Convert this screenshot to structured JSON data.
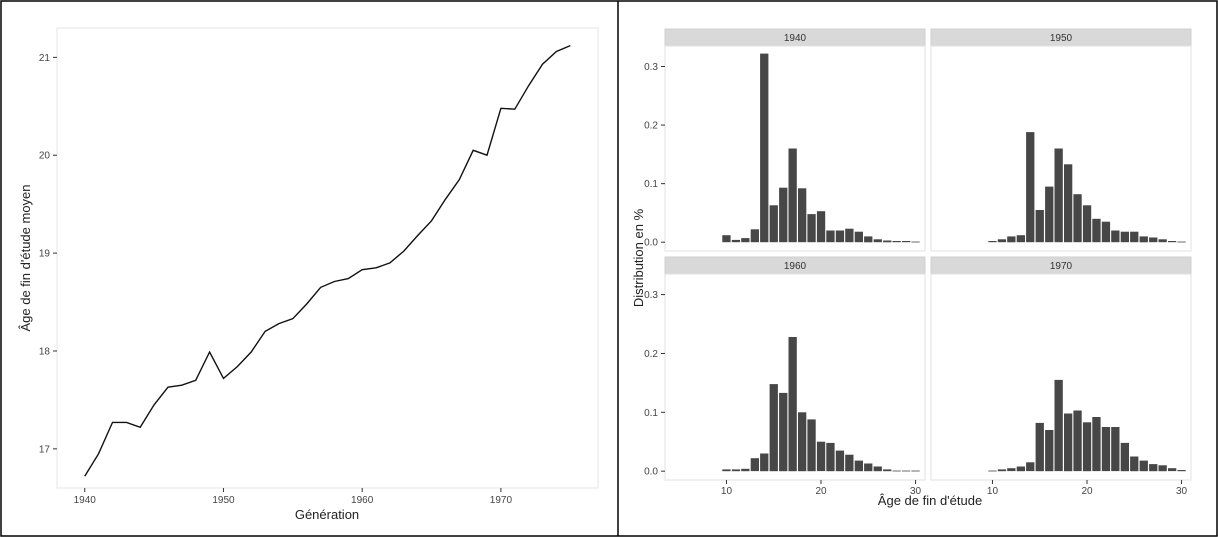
{
  "chart_data": [
    {
      "type": "line",
      "xlabel": "Génération",
      "ylabel": "Âge de fin d'étude moyen",
      "xlim": [
        1938,
        1977
      ],
      "ylim": [
        16.6,
        21.3
      ],
      "x_ticks": [
        "1940",
        "1950",
        "1960",
        "1970"
      ],
      "y_ticks": [
        "17",
        "18",
        "19",
        "20",
        "21"
      ],
      "grid": false,
      "series": [
        {
          "x": [
            1940,
            1941,
            1942,
            1943,
            1944,
            1945,
            1946,
            1947,
            1948,
            1949,
            1950,
            1951,
            1952,
            1953,
            1954,
            1955,
            1956,
            1957,
            1958,
            1959,
            1960,
            1961,
            1962,
            1963,
            1964,
            1965,
            1966,
            1967,
            1968,
            1969,
            1970,
            1971,
            1972,
            1973,
            1974,
            1975
          ],
          "y": [
            16.72,
            16.95,
            17.27,
            17.27,
            17.22,
            17.45,
            17.63,
            17.65,
            17.7,
            17.99,
            17.72,
            17.84,
            17.99,
            18.2,
            18.28,
            18.33,
            18.48,
            18.65,
            18.71,
            18.74,
            18.83,
            18.85,
            18.9,
            19.02,
            19.18,
            19.33,
            19.55,
            19.75,
            20.05,
            20.0,
            20.48,
            20.47,
            20.71,
            20.93,
            21.06,
            21.12
          ]
        }
      ]
    },
    {
      "type": "bar",
      "facet_strips": [
        "1940",
        "1950",
        "1960",
        "1970"
      ],
      "xlabel": "Âge de fin d'étude",
      "ylabel": "Distribution en %",
      "xlim": [
        3.5,
        31
      ],
      "ylim": [
        -0.015,
        0.335
      ],
      "x_ticks": [
        "10",
        "20",
        "30"
      ],
      "y_ticks": [
        "0.0",
        "0.1",
        "0.2",
        "0.3"
      ],
      "categories": [
        10,
        11,
        12,
        13,
        14,
        15,
        16,
        17,
        18,
        19,
        20,
        21,
        22,
        23,
        24,
        25,
        26,
        27,
        28,
        29,
        30
      ],
      "series": [
        {
          "name": "1940",
          "values": [
            0.012,
            0.004,
            0.007,
            0.022,
            0.322,
            0.063,
            0.093,
            0.16,
            0.092,
            0.048,
            0.053,
            0.02,
            0.02,
            0.023,
            0.018,
            0.01,
            0.005,
            0.003,
            0.002,
            0.002,
            0.001
          ]
        },
        {
          "name": "1950",
          "values": [
            0.002,
            0.005,
            0.01,
            0.012,
            0.188,
            0.055,
            0.095,
            0.16,
            0.133,
            0.082,
            0.063,
            0.04,
            0.035,
            0.02,
            0.018,
            0.018,
            0.01,
            0.008,
            0.005,
            0.002,
            0.001
          ]
        },
        {
          "name": "1960",
          "values": [
            0.003,
            0.003,
            0.004,
            0.022,
            0.03,
            0.148,
            0.133,
            0.228,
            0.1,
            0.088,
            0.05,
            0.048,
            0.035,
            0.028,
            0.018,
            0.013,
            0.008,
            0.003,
            0.001,
            0.001,
            0.001
          ]
        },
        {
          "name": "1970",
          "values": [
            0.001,
            0.003,
            0.005,
            0.008,
            0.015,
            0.082,
            0.07,
            0.155,
            0.098,
            0.103,
            0.083,
            0.092,
            0.075,
            0.075,
            0.048,
            0.025,
            0.018,
            0.012,
            0.01,
            0.005,
            0.002
          ]
        }
      ]
    }
  ]
}
